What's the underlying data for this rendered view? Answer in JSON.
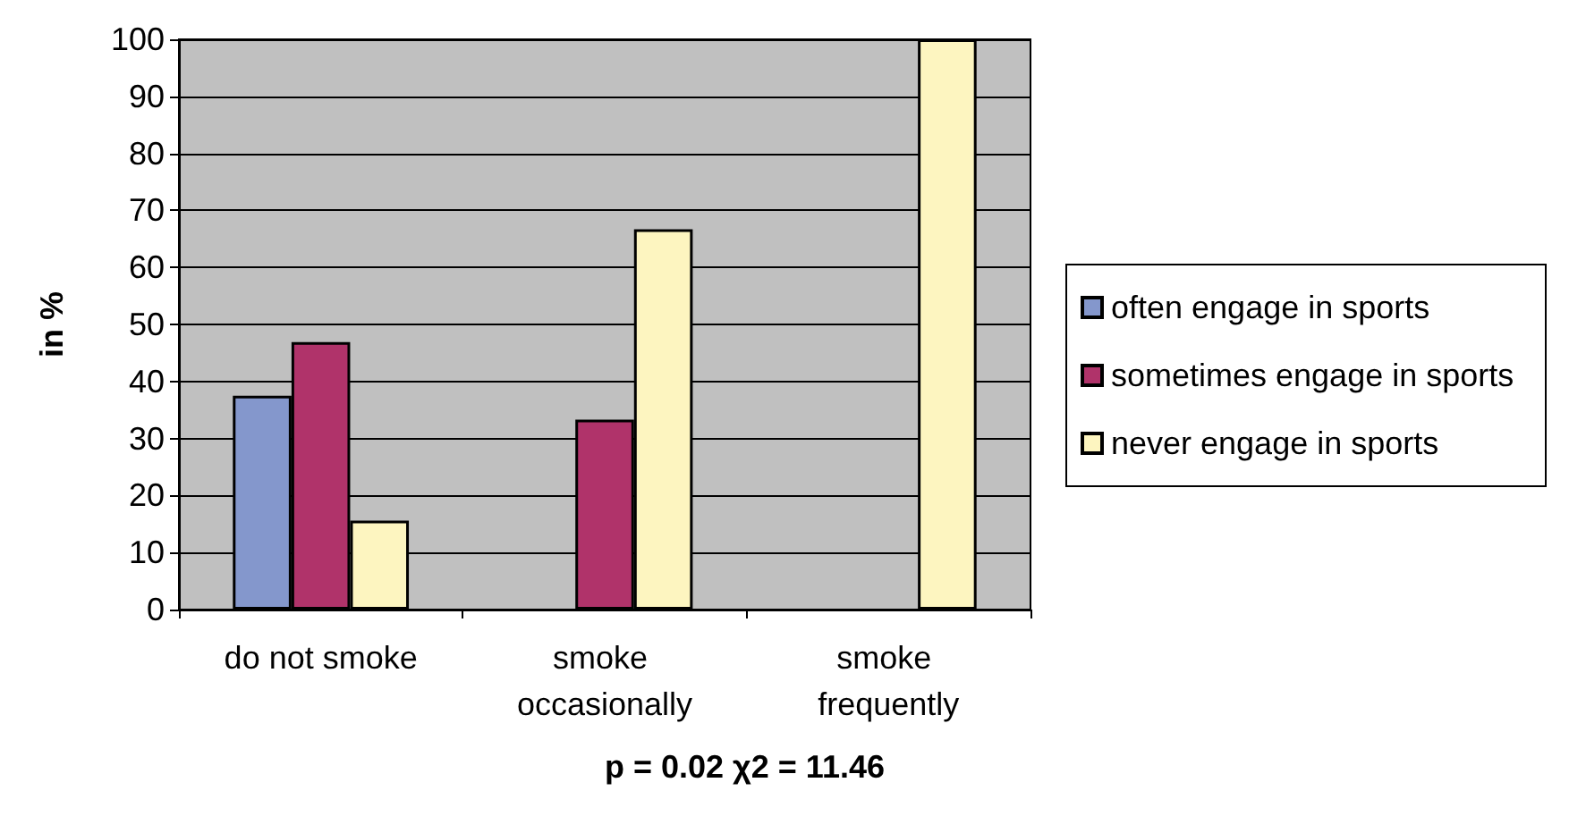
{
  "chart_data": {
    "type": "bar",
    "ylabel": "in %",
    "categories": [
      "do not smoke",
      "smoke occasionally",
      "smoke frequently"
    ],
    "series": [
      {
        "name": "often engage in sports",
        "color": "#8497cc",
        "values": [
          37.5,
          0,
          0
        ]
      },
      {
        "name": "sometimes engage in sports",
        "color": "#b0336a",
        "values": [
          46.9,
          33.3,
          0
        ]
      },
      {
        "name": "never engage in sports",
        "color": "#fdf5c0",
        "values": [
          15.6,
          66.7,
          100
        ]
      }
    ],
    "ylim": [
      0,
      100
    ],
    "yticks": [
      0,
      10,
      20,
      30,
      40,
      50,
      60,
      70,
      80,
      90,
      100
    ],
    "grid": "y",
    "legend": "right",
    "annotations": [
      "p = 0.02 χ2 = 11.46"
    ]
  }
}
